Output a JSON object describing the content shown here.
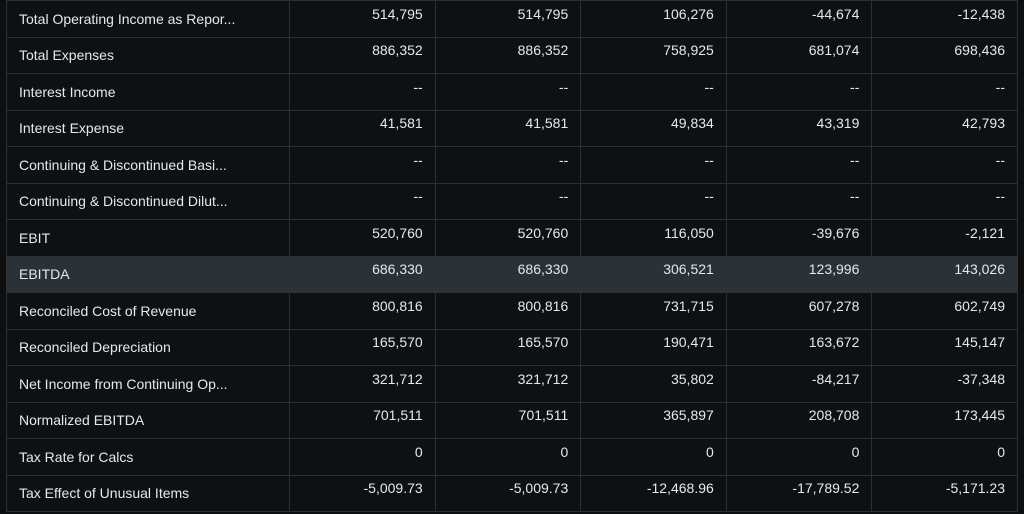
{
  "table": {
    "rows": [
      {
        "label": "Total Operating Income as Repor...",
        "values": [
          "514,795",
          "514,795",
          "106,276",
          "-44,674",
          "-12,438"
        ],
        "highlight": false
      },
      {
        "label": "Total Expenses",
        "values": [
          "886,352",
          "886,352",
          "758,925",
          "681,074",
          "698,436"
        ],
        "highlight": false
      },
      {
        "label": "Interest Income",
        "values": [
          "--",
          "--",
          "--",
          "--",
          "--"
        ],
        "highlight": false
      },
      {
        "label": "Interest Expense",
        "values": [
          "41,581",
          "41,581",
          "49,834",
          "43,319",
          "42,793"
        ],
        "highlight": false
      },
      {
        "label": "Continuing & Discontinued Basi...",
        "values": [
          "--",
          "--",
          "--",
          "--",
          "--"
        ],
        "highlight": false
      },
      {
        "label": "Continuing & Discontinued Dilut...",
        "values": [
          "--",
          "--",
          "--",
          "--",
          "--"
        ],
        "highlight": false
      },
      {
        "label": "EBIT",
        "values": [
          "520,760",
          "520,760",
          "116,050",
          "-39,676",
          "-2,121"
        ],
        "highlight": false
      },
      {
        "label": "EBITDA",
        "values": [
          "686,330",
          "686,330",
          "306,521",
          "123,996",
          "143,026"
        ],
        "highlight": true
      },
      {
        "label": "Reconciled Cost of Revenue",
        "values": [
          "800,816",
          "800,816",
          "731,715",
          "607,278",
          "602,749"
        ],
        "highlight": false
      },
      {
        "label": "Reconciled Depreciation",
        "values": [
          "165,570",
          "165,570",
          "190,471",
          "163,672",
          "145,147"
        ],
        "highlight": false
      },
      {
        "label": "Net Income from Continuing Op...",
        "values": [
          "321,712",
          "321,712",
          "35,802",
          "-84,217",
          "-37,348"
        ],
        "highlight": false
      },
      {
        "label": "Normalized EBITDA",
        "values": [
          "701,511",
          "701,511",
          "365,897",
          "208,708",
          "173,445"
        ],
        "highlight": false
      },
      {
        "label": "Tax Rate for Calcs",
        "values": [
          "0",
          "0",
          "0",
          "0",
          "0"
        ],
        "highlight": false
      },
      {
        "label": "Tax Effect of Unusual Items",
        "values": [
          "-5,009.73",
          "-5,009.73",
          "-12,468.96",
          "-17,789.52",
          "-5,171.23"
        ],
        "highlight": false
      }
    ]
  }
}
